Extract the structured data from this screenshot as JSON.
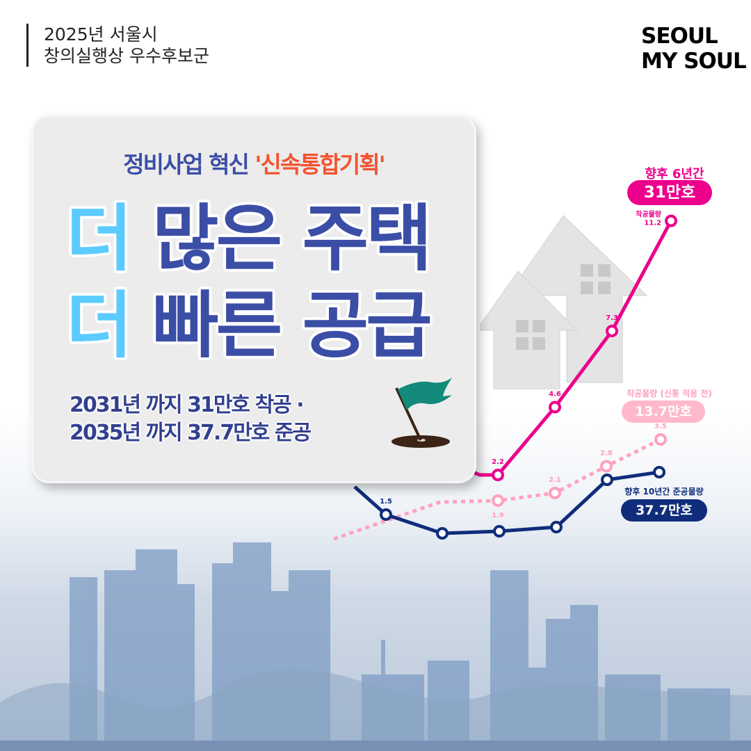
{
  "header": {
    "line1": "2025년 서울시",
    "line2": "창의실행상 우수후보군"
  },
  "logo": {
    "line1": "SEOUL",
    "line2": "MY SOUL"
  },
  "card": {
    "subtitle_prefix": "정비사업 혁신 ",
    "subtitle_highlight": "'신속통합기획'",
    "line1_accent": "더",
    "line1_rest": " 많은 주택",
    "line2_accent": "더",
    "line2_rest": " 빠른 공급",
    "bottom1": "2031년 까지 31만호 착공 ·",
    "bottom2": "2035년 까지 37.7만호 준공",
    "flag_icon": "golf-flag-icon"
  },
  "colors": {
    "navy": "#3b4ea6",
    "cyan": "#5bcbff",
    "orange": "#f5522f",
    "magenta": "#ec008c",
    "pink": "#ffa1bd",
    "dark_navy": "#0f2d7a"
  },
  "chart_data": {
    "type": "line",
    "series": [
      {
        "name": "착공물량",
        "values": [
          2.2,
          4.6,
          7.3,
          11.2
        ],
        "labels": [
          "2.2",
          "4.6",
          "7.3",
          "착공물량 11.2"
        ],
        "style": "solid",
        "color": "#ec008c",
        "callout_title": "향후 6년간",
        "callout_value": "31만호"
      },
      {
        "name": "착공물량 (신통 적용 전)",
        "values": [
          1.9,
          2.1,
          2.8,
          3.5
        ],
        "labels": [
          "1.9",
          "2.1",
          "2.8",
          "3.5"
        ],
        "style": "dotted",
        "color": "#ffa1bd",
        "callout_value": "13.7만호"
      },
      {
        "name": "향후 10년간 준공물량",
        "labels": [
          "1.5",
          "",
          "",
          "",
          "",
          ""
        ],
        "style": "solid",
        "color": "#0f2d7a",
        "callout_value": "37.7만호"
      }
    ]
  }
}
